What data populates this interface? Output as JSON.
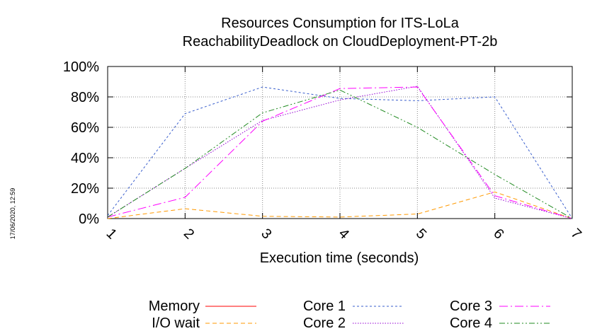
{
  "stamp": "17/06/2020, 12:59",
  "chart_data": {
    "type": "line",
    "title": [
      "Resources Consumption for ITS-LoLa",
      "ReachabilityDeadlock on CloudDeployment-PT-2b"
    ],
    "xlabel": "Execution time (seconds)",
    "ylabel": "",
    "x": [
      1,
      2,
      3,
      4,
      5,
      6,
      7
    ],
    "xlim": [
      1,
      7
    ],
    "ylim": [
      0,
      100
    ],
    "y_ticks": [
      "0%",
      "20%",
      "40%",
      "60%",
      "80%",
      "100%"
    ],
    "y_tick_values": [
      0,
      20,
      40,
      60,
      80,
      100
    ],
    "x_ticks": [
      "1",
      "2",
      "3",
      "4",
      "5",
      "6",
      "7"
    ],
    "grid": true,
    "legend_position": "bottom",
    "series": [
      {
        "name": "Memory",
        "color": "#ff0000",
        "dash": "solid",
        "values": [
          null,
          null,
          null,
          null,
          null,
          null,
          null
        ]
      },
      {
        "name": "I/O wait",
        "color": "#ff9900",
        "dash": "dashed",
        "values": [
          0,
          6.5,
          1.5,
          1,
          3,
          17.5,
          0
        ]
      },
      {
        "name": "Core 1",
        "color": "#3a5fcd",
        "dash": "dotted",
        "values": [
          2,
          69,
          86.5,
          79,
          77.5,
          80,
          0
        ]
      },
      {
        "name": "Core 2",
        "color": "#9400d3",
        "dash": "dotted2",
        "values": [
          1,
          33,
          64.5,
          78,
          87,
          13.5,
          0
        ]
      },
      {
        "name": "Core 3",
        "color": "#ff00ff",
        "dash": "dashdot",
        "values": [
          1,
          14,
          64,
          85.5,
          86.5,
          15,
          0
        ]
      },
      {
        "name": "Core 4",
        "color": "#228b22",
        "dash": "dashdotdot",
        "values": [
          1,
          33,
          69.5,
          84.5,
          60,
          29,
          0
        ]
      }
    ]
  }
}
